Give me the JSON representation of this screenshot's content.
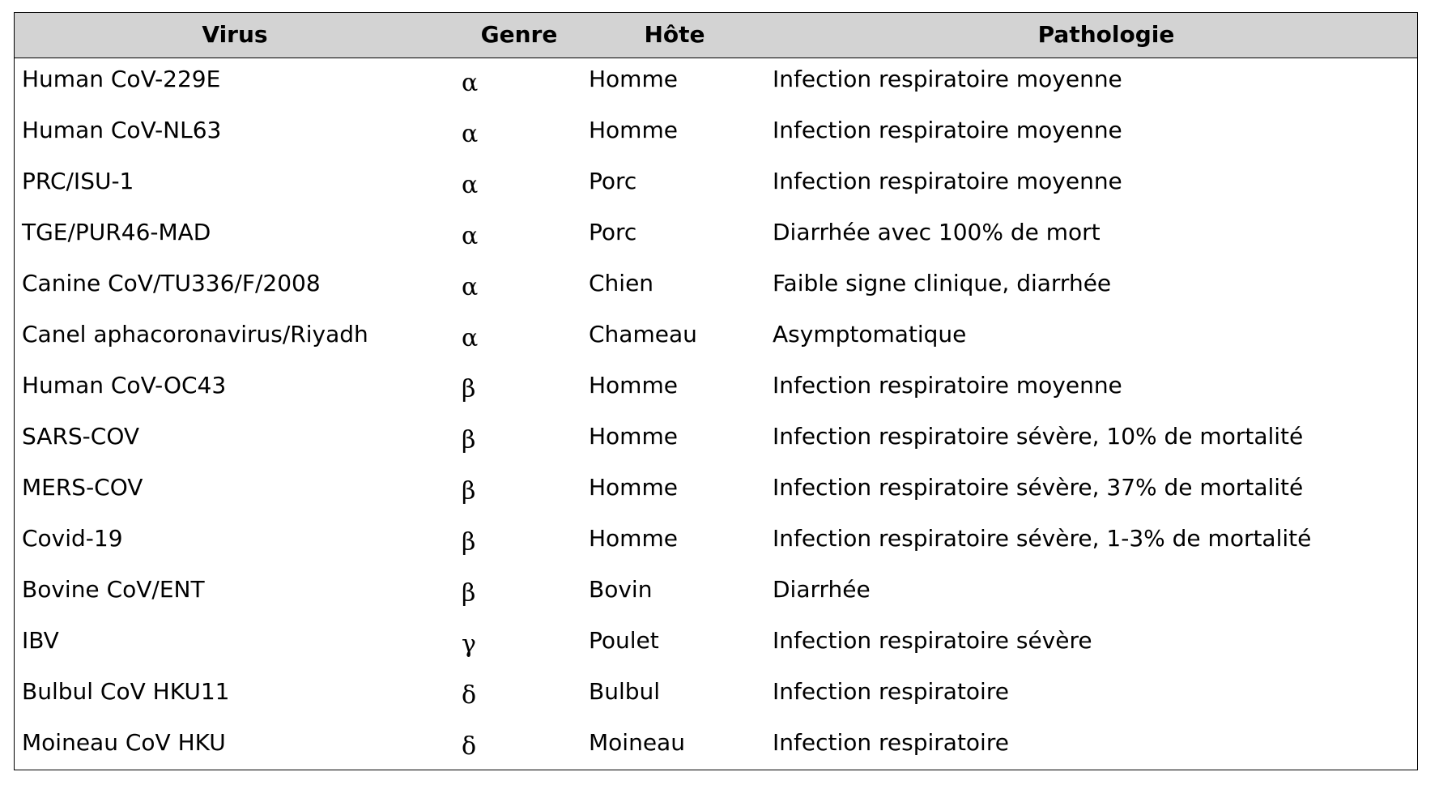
{
  "headers": [
    "Virus",
    "Genre",
    "Hôte",
    "Pathologie"
  ],
  "rows": [
    [
      "Human CoV-229E",
      "α",
      "Homme",
      "Infection respiratoire moyenne"
    ],
    [
      "Human CoV-NL63",
      "α",
      "Homme",
      "Infection respiratoire moyenne"
    ],
    [
      "PRC/ISU-1",
      "α",
      "Porc",
      "Infection respiratoire moyenne"
    ],
    [
      "TGE/PUR46-MAD",
      "α",
      "Porc",
      "Diarrhée avec 100% de mort"
    ],
    [
      "Canine CoV/TU336/F/2008",
      "α",
      "Chien",
      "Faible signe clinique, diarrhée"
    ],
    [
      "Canel aphacoronavirus/Riyadh",
      "α",
      "Chameau",
      "Asymptomatique"
    ],
    [
      "Human CoV-OC43",
      "β",
      "Homme",
      "Infection respiratoire moyenne"
    ],
    [
      "SARS-COV",
      "β",
      "Homme",
      "Infection respiratoire sévère, 10% de mortalité"
    ],
    [
      "MERS-COV",
      "β",
      "Homme",
      "Infection respiratoire sévère, 37% de mortalité"
    ],
    [
      "Covid-19",
      "β",
      "Homme",
      "Infection respiratoire sévère, 1-3% de mortalité"
    ],
    [
      "Bovine CoV/ENT",
      "β",
      "Bovin",
      "Diarrhée"
    ],
    [
      "IBV",
      "γ",
      "Poulet",
      "Infection respiratoire sévère"
    ],
    [
      "Bulbul CoV HKU11",
      "δ",
      "Bulbul",
      "Infection respiratoire"
    ],
    [
      "Moineau CoV HKU",
      "δ",
      "Moineau",
      "Infection respiratoire"
    ]
  ]
}
